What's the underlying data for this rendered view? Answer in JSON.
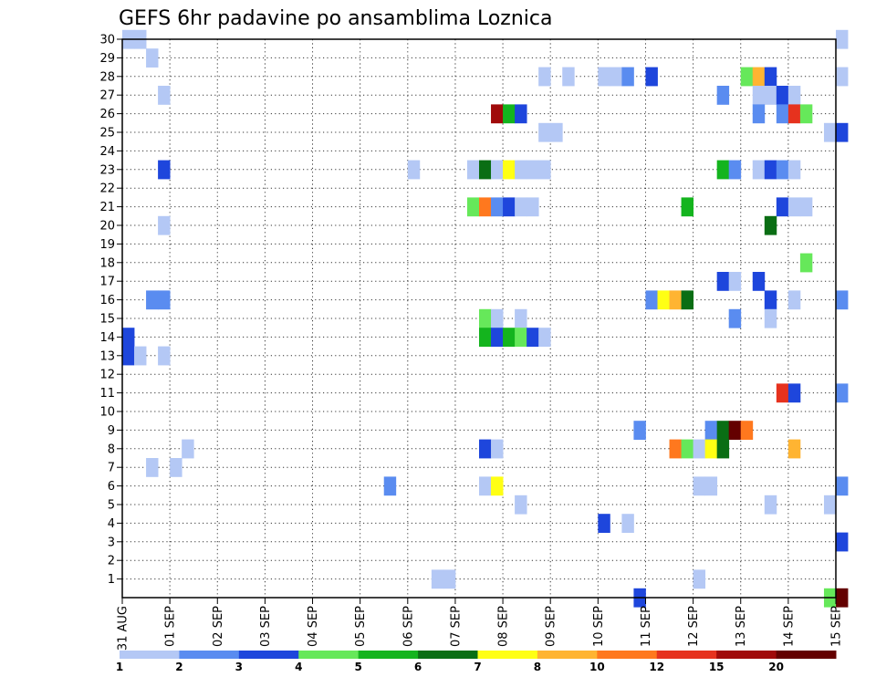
{
  "chart_data": {
    "type": "heatmap",
    "title": "GEFS 6hr padavine po ansamblima Loznica",
    "y_labels": [
      "1",
      "2",
      "3",
      "4",
      "5",
      "6",
      "7",
      "8",
      "9",
      "10",
      "11",
      "12",
      "13",
      "14",
      "15",
      "16",
      "17",
      "18",
      "19",
      "20",
      "21",
      "22",
      "23",
      "24",
      "25",
      "26",
      "27",
      "28",
      "29",
      "30"
    ],
    "x_labels": [
      "31 AUG",
      "01 SEP",
      "02 SEP",
      "03 SEP",
      "04 SEP",
      "05 SEP",
      "06 SEP",
      "07 SEP",
      "08 SEP",
      "09 SEP",
      "10 SEP",
      "11 SEP",
      "12 SEP",
      "13 SEP",
      "14 SEP",
      "15 SEP"
    ],
    "x_range_days": [
      0,
      15
    ],
    "y_range": [
      0,
      30
    ],
    "grid": true,
    "legend": {
      "placement": "bottom",
      "labels": [
        "1",
        "2",
        "3",
        "4",
        "5",
        "6",
        "7",
        "8",
        "10",
        "12",
        "15",
        "20"
      ],
      "colors": [
        "#b4c8f5",
        "#5a8cf0",
        "#1e46dc",
        "#66e85a",
        "#14b41e",
        "#0a6e14",
        "#ffff14",
        "#ffb432",
        "#ff781e",
        "#e6321e",
        "#a00a0a",
        "#640000"
      ]
    },
    "cells": [
      {
        "member": 30,
        "day": 0.0,
        "cat": 1
      },
      {
        "member": 30,
        "day": 0.25,
        "cat": 1
      },
      {
        "member": 30,
        "day": 15.0,
        "cat": 1
      },
      {
        "member": 29,
        "day": 0.5,
        "cat": 1
      },
      {
        "member": 28,
        "day": 8.75,
        "cat": 1
      },
      {
        "member": 28,
        "day": 9.25,
        "cat": 1
      },
      {
        "member": 28,
        "day": 10.0,
        "cat": 1
      },
      {
        "member": 28,
        "day": 10.25,
        "cat": 1
      },
      {
        "member": 28,
        "day": 10.5,
        "cat": 2
      },
      {
        "member": 28,
        "day": 11.0,
        "cat": 3
      },
      {
        "member": 28,
        "day": 13.0,
        "cat": 4
      },
      {
        "member": 28,
        "day": 13.25,
        "cat": 8
      },
      {
        "member": 28,
        "day": 13.5,
        "cat": 3
      },
      {
        "member": 28,
        "day": 15.0,
        "cat": 1
      },
      {
        "member": 27,
        "day": 0.75,
        "cat": 1
      },
      {
        "member": 27,
        "day": 12.5,
        "cat": 2
      },
      {
        "member": 27,
        "day": 13.25,
        "cat": 1
      },
      {
        "member": 27,
        "day": 13.5,
        "cat": 1
      },
      {
        "member": 27,
        "day": 13.75,
        "cat": 3
      },
      {
        "member": 27,
        "day": 14.0,
        "cat": 1
      },
      {
        "member": 26,
        "day": 7.75,
        "cat": 11
      },
      {
        "member": 26,
        "day": 8.0,
        "cat": 5
      },
      {
        "member": 26,
        "day": 8.25,
        "cat": 3
      },
      {
        "member": 26,
        "day": 13.25,
        "cat": 2
      },
      {
        "member": 26,
        "day": 13.75,
        "cat": 2
      },
      {
        "member": 26,
        "day": 14.0,
        "cat": 10
      },
      {
        "member": 26,
        "day": 14.25,
        "cat": 4
      },
      {
        "member": 25,
        "day": 8.75,
        "cat": 1
      },
      {
        "member": 25,
        "day": 9.0,
        "cat": 1
      },
      {
        "member": 25,
        "day": 14.75,
        "cat": 1
      },
      {
        "member": 25,
        "day": 15.0,
        "cat": 3
      },
      {
        "member": 23,
        "day": 0.75,
        "cat": 3
      },
      {
        "member": 23,
        "day": 6.0,
        "cat": 1
      },
      {
        "member": 23,
        "day": 7.25,
        "cat": 1
      },
      {
        "member": 23,
        "day": 7.5,
        "cat": 6
      },
      {
        "member": 23,
        "day": 7.75,
        "cat": 1
      },
      {
        "member": 23,
        "day": 8.0,
        "cat": 7
      },
      {
        "member": 23,
        "day": 8.25,
        "cat": 1
      },
      {
        "member": 23,
        "day": 8.5,
        "cat": 1
      },
      {
        "member": 23,
        "day": 8.75,
        "cat": 1
      },
      {
        "member": 23,
        "day": 12.5,
        "cat": 5
      },
      {
        "member": 23,
        "day": 12.75,
        "cat": 2
      },
      {
        "member": 23,
        "day": 13.25,
        "cat": 1
      },
      {
        "member": 23,
        "day": 13.5,
        "cat": 3
      },
      {
        "member": 23,
        "day": 13.75,
        "cat": 2
      },
      {
        "member": 23,
        "day": 14.0,
        "cat": 1
      },
      {
        "member": 21,
        "day": 7.25,
        "cat": 4
      },
      {
        "member": 21,
        "day": 7.5,
        "cat": 9
      },
      {
        "member": 21,
        "day": 7.75,
        "cat": 2
      },
      {
        "member": 21,
        "day": 8.0,
        "cat": 3
      },
      {
        "member": 21,
        "day": 8.25,
        "cat": 1
      },
      {
        "member": 21,
        "day": 8.5,
        "cat": 1
      },
      {
        "member": 21,
        "day": 11.75,
        "cat": 5
      },
      {
        "member": 21,
        "day": 13.75,
        "cat": 3
      },
      {
        "member": 21,
        "day": 14.0,
        "cat": 1
      },
      {
        "member": 21,
        "day": 14.25,
        "cat": 1
      },
      {
        "member": 20,
        "day": 0.75,
        "cat": 1
      },
      {
        "member": 20,
        "day": 13.5,
        "cat": 6
      },
      {
        "member": 18,
        "day": 14.25,
        "cat": 4
      },
      {
        "member": 17,
        "day": 12.5,
        "cat": 3
      },
      {
        "member": 17,
        "day": 12.75,
        "cat": 1
      },
      {
        "member": 17,
        "day": 13.25,
        "cat": 3
      },
      {
        "member": 16,
        "day": 0.5,
        "cat": 2
      },
      {
        "member": 16,
        "day": 0.75,
        "cat": 2
      },
      {
        "member": 16,
        "day": 11.0,
        "cat": 2
      },
      {
        "member": 16,
        "day": 11.25,
        "cat": 7
      },
      {
        "member": 16,
        "day": 11.5,
        "cat": 8
      },
      {
        "member": 16,
        "day": 11.75,
        "cat": 6
      },
      {
        "member": 16,
        "day": 13.5,
        "cat": 3
      },
      {
        "member": 16,
        "day": 14.0,
        "cat": 1
      },
      {
        "member": 16,
        "day": 15.0,
        "cat": 2
      },
      {
        "member": 15,
        "day": 7.5,
        "cat": 4
      },
      {
        "member": 15,
        "day": 7.75,
        "cat": 1
      },
      {
        "member": 15,
        "day": 8.25,
        "cat": 1
      },
      {
        "member": 15,
        "day": 12.75,
        "cat": 2
      },
      {
        "member": 15,
        "day": 13.5,
        "cat": 1
      },
      {
        "member": 14,
        "day": 0.0,
        "cat": 3
      },
      {
        "member": 14,
        "day": 7.5,
        "cat": 5
      },
      {
        "member": 14,
        "day": 7.75,
        "cat": 3
      },
      {
        "member": 14,
        "day": 8.0,
        "cat": 5
      },
      {
        "member": 14,
        "day": 8.25,
        "cat": 4
      },
      {
        "member": 14,
        "day": 8.5,
        "cat": 3
      },
      {
        "member": 14,
        "day": 8.75,
        "cat": 1
      },
      {
        "member": 13,
        "day": 0.0,
        "cat": 3
      },
      {
        "member": 13,
        "day": 0.25,
        "cat": 1
      },
      {
        "member": 13,
        "day": 0.75,
        "cat": 1
      },
      {
        "member": 11,
        "day": 13.75,
        "cat": 10
      },
      {
        "member": 11,
        "day": 14.0,
        "cat": 3
      },
      {
        "member": 11,
        "day": 15.0,
        "cat": 2
      },
      {
        "member": 9,
        "day": 10.75,
        "cat": 2
      },
      {
        "member": 9,
        "day": 12.25,
        "cat": 2
      },
      {
        "member": 9,
        "day": 12.5,
        "cat": 6
      },
      {
        "member": 9,
        "day": 12.75,
        "cat": 12
      },
      {
        "member": 9,
        "day": 13.0,
        "cat": 9
      },
      {
        "member": 8,
        "day": 1.25,
        "cat": 1
      },
      {
        "member": 8,
        "day": 7.5,
        "cat": 3
      },
      {
        "member": 8,
        "day": 7.75,
        "cat": 1
      },
      {
        "member": 8,
        "day": 11.5,
        "cat": 9
      },
      {
        "member": 8,
        "day": 11.75,
        "cat": 4
      },
      {
        "member": 8,
        "day": 12.0,
        "cat": 1
      },
      {
        "member": 8,
        "day": 12.25,
        "cat": 7
      },
      {
        "member": 8,
        "day": 12.5,
        "cat": 6
      },
      {
        "member": 8,
        "day": 14.0,
        "cat": 8
      },
      {
        "member": 7,
        "day": 0.5,
        "cat": 1
      },
      {
        "member": 7,
        "day": 1.0,
        "cat": 1
      },
      {
        "member": 6,
        "day": 5.5,
        "cat": 2
      },
      {
        "member": 6,
        "day": 7.5,
        "cat": 1
      },
      {
        "member": 6,
        "day": 7.75,
        "cat": 7
      },
      {
        "member": 6,
        "day": 12.0,
        "cat": 1
      },
      {
        "member": 6,
        "day": 12.25,
        "cat": 1
      },
      {
        "member": 6,
        "day": 15.0,
        "cat": 2
      },
      {
        "member": 5,
        "day": 8.25,
        "cat": 1
      },
      {
        "member": 5,
        "day": 13.5,
        "cat": 1
      },
      {
        "member": 5,
        "day": 14.75,
        "cat": 1
      },
      {
        "member": 4,
        "day": 10.0,
        "cat": 3
      },
      {
        "member": 4,
        "day": 10.5,
        "cat": 1
      },
      {
        "member": 3,
        "day": 15.0,
        "cat": 3
      },
      {
        "member": 1,
        "day": 6.5,
        "cat": 1
      },
      {
        "member": 1,
        "day": 6.75,
        "cat": 1
      },
      {
        "member": 1,
        "day": 12.0,
        "cat": 1
      },
      {
        "member": 0,
        "day": 10.75,
        "cat": 3
      },
      {
        "member": 0,
        "day": 14.75,
        "cat": 4
      },
      {
        "member": 0,
        "day": 15.0,
        "cat": 12
      }
    ]
  }
}
